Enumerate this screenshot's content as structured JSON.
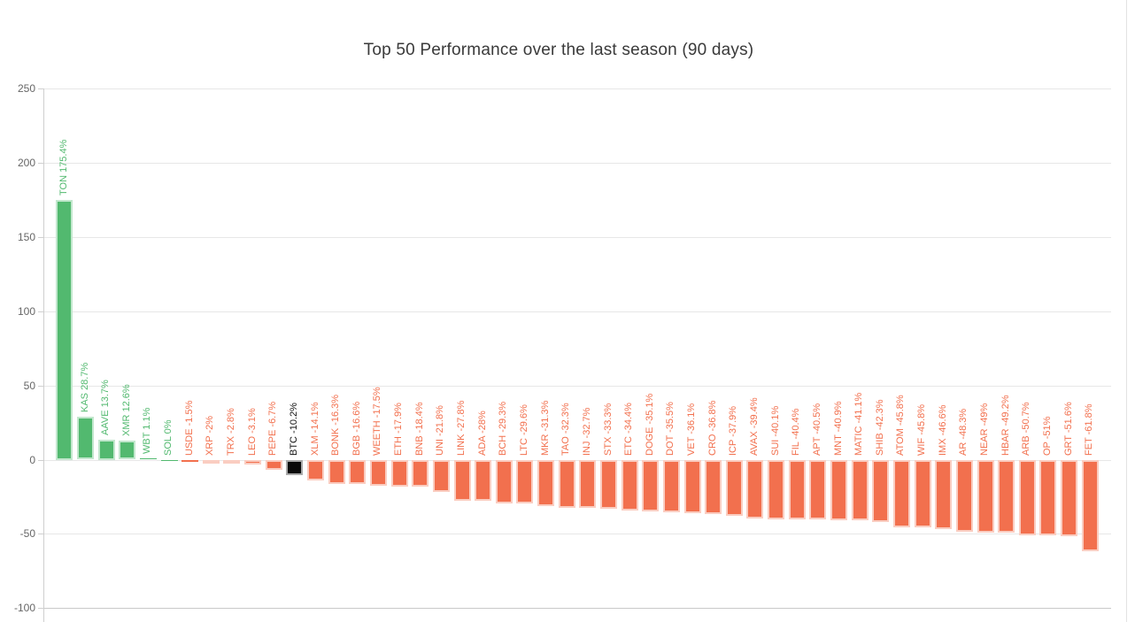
{
  "title": "Top 50 Performance over the last season (90 days)",
  "chart_data": {
    "type": "bar",
    "title": "Top 50 Performance over the last season (90 days)",
    "xlabel": "",
    "ylabel": "",
    "ylim": [
      -100,
      250
    ],
    "yticks": [
      250,
      200,
      150,
      100,
      50,
      0,
      -50,
      -100
    ],
    "ytick_labels": [
      "250",
      "200",
      "150",
      "100",
      "50",
      "0",
      "-50",
      "-100"
    ],
    "grid": true,
    "legend": "none",
    "highlight_category": "BTC",
    "colors": {
      "positive": "#52b96f",
      "negative": "#f2704e",
      "highlight": "#0a0a0a",
      "highlight_label": "#111111",
      "grid": "#e7e7e7",
      "axis": "#cfcfcf",
      "tick_label": "#666666",
      "title": "#3a3a3a"
    },
    "bars": [
      {
        "ticker": "TON",
        "value": 175.4,
        "label": "TON 175.4%"
      },
      {
        "ticker": "KAS",
        "value": 28.7,
        "label": "KAS 28.7%"
      },
      {
        "ticker": "AAVE",
        "value": 13.7,
        "label": "AAVE 13.7%"
      },
      {
        "ticker": "XMR",
        "value": 12.6,
        "label": "XMR 12.6%"
      },
      {
        "ticker": "WBT",
        "value": 1.1,
        "label": "WBT 1.1%"
      },
      {
        "ticker": "SOL",
        "value": 0,
        "label": "SOL 0%"
      },
      {
        "ticker": "USDE",
        "value": -1.5,
        "label": "USDE -1.5%"
      },
      {
        "ticker": "XRP",
        "value": -2,
        "label": "XRP -2%"
      },
      {
        "ticker": "TRX",
        "value": -2.8,
        "label": "TRX -2.8%"
      },
      {
        "ticker": "LEO",
        "value": -3.1,
        "label": "LEO -3.1%"
      },
      {
        "ticker": "PEPE",
        "value": -6.7,
        "label": "PEPE -6.7%"
      },
      {
        "ticker": "BTC",
        "value": -10.2,
        "label": "BTC -10.2%"
      },
      {
        "ticker": "XLM",
        "value": -14.1,
        "label": "XLM -14.1%"
      },
      {
        "ticker": "BONK",
        "value": -16.3,
        "label": "BONK -16.3%"
      },
      {
        "ticker": "BGB",
        "value": -16.6,
        "label": "BGB -16.6%"
      },
      {
        "ticker": "WEETH",
        "value": -17.5,
        "label": "WEETH -17.5%"
      },
      {
        "ticker": "ETH",
        "value": -17.9,
        "label": "ETH -17.9%"
      },
      {
        "ticker": "BNB",
        "value": -18.4,
        "label": "BNB -18.4%"
      },
      {
        "ticker": "UNI",
        "value": -21.8,
        "label": "UNI -21.8%"
      },
      {
        "ticker": "LINK",
        "value": -27.8,
        "label": "LINK -27.8%"
      },
      {
        "ticker": "ADA",
        "value": -28,
        "label": "ADA -28%"
      },
      {
        "ticker": "BCH",
        "value": -29.3,
        "label": "BCH -29.3%"
      },
      {
        "ticker": "LTC",
        "value": -29.6,
        "label": "LTC -29.6%"
      },
      {
        "ticker": "MKR",
        "value": -31.3,
        "label": "MKR -31.3%"
      },
      {
        "ticker": "TAO",
        "value": -32.3,
        "label": "TAO -32.3%"
      },
      {
        "ticker": "INJ",
        "value": -32.7,
        "label": "INJ -32.7%"
      },
      {
        "ticker": "STX",
        "value": -33.3,
        "label": "STX -33.3%"
      },
      {
        "ticker": "ETC",
        "value": -34.4,
        "label": "ETC -34.4%"
      },
      {
        "ticker": "DOGE",
        "value": -35.1,
        "label": "DOGE -35.1%"
      },
      {
        "ticker": "DOT",
        "value": -35.5,
        "label": "DOT -35.5%"
      },
      {
        "ticker": "VET",
        "value": -36.1,
        "label": "VET -36.1%"
      },
      {
        "ticker": "CRO",
        "value": -36.8,
        "label": "CRO -36.8%"
      },
      {
        "ticker": "ICP",
        "value": -37.9,
        "label": "ICP -37.9%"
      },
      {
        "ticker": "AVAX",
        "value": -39.4,
        "label": "AVAX -39.4%"
      },
      {
        "ticker": "SUI",
        "value": -40.1,
        "label": "SUI -40.1%"
      },
      {
        "ticker": "FIL",
        "value": -40.4,
        "label": "FIL -40.4%"
      },
      {
        "ticker": "APT",
        "value": -40.5,
        "label": "APT -40.5%"
      },
      {
        "ticker": "MNT",
        "value": -40.9,
        "label": "MNT -40.9%"
      },
      {
        "ticker": "MATIC",
        "value": -41.1,
        "label": "MATIC -41.1%"
      },
      {
        "ticker": "SHIB",
        "value": -42.3,
        "label": "SHIB -42.3%"
      },
      {
        "ticker": "ATOM",
        "value": -45.8,
        "label": "ATOM -45.8%"
      },
      {
        "ticker": "WIF",
        "value": -45.8,
        "label": "WIF -45.8%"
      },
      {
        "ticker": "IMX",
        "value": -46.6,
        "label": "IMX -46.6%"
      },
      {
        "ticker": "AR",
        "value": -48.3,
        "label": "AR -48.3%"
      },
      {
        "ticker": "NEAR",
        "value": -49,
        "label": "NEAR -49%"
      },
      {
        "ticker": "HBAR",
        "value": -49.2,
        "label": "HBAR -49.2%"
      },
      {
        "ticker": "ARB",
        "value": -50.7,
        "label": "ARB -50.7%"
      },
      {
        "ticker": "OP",
        "value": -51,
        "label": "OP -51%"
      },
      {
        "ticker": "GRT",
        "value": -51.6,
        "label": "GRT -51.6%"
      },
      {
        "ticker": "FET",
        "value": -61.8,
        "label": "FET -61.8%"
      }
    ]
  }
}
